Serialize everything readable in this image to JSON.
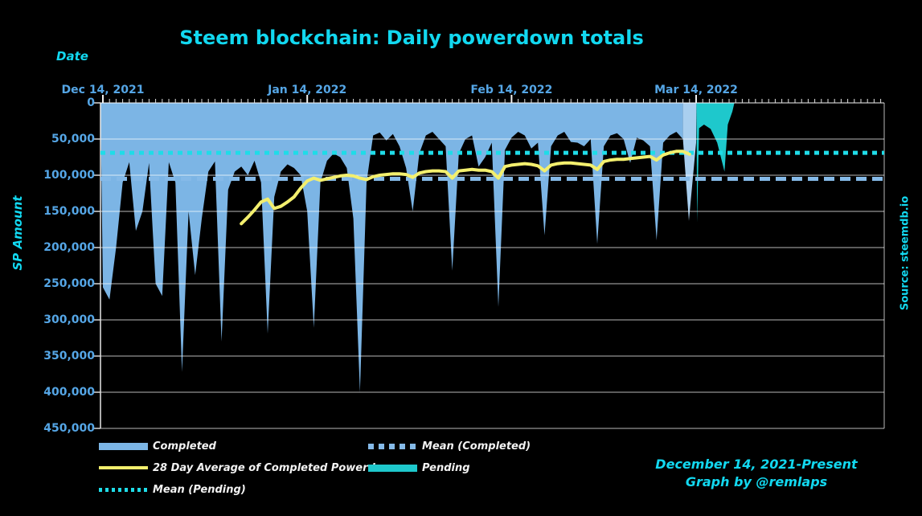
{
  "title": "Steem blockchain: Daily powerdown totals",
  "x_axis_title": "Date",
  "y_axis_title": "SP Amount",
  "source_note": "Source: steemdb.io",
  "footer": {
    "line1": "December 14, 2021-Present",
    "line2": "Graph by @remlaps"
  },
  "colors": {
    "background": "#000000",
    "title_cyan": "#12d8f0",
    "axis_label_blue": "#55a6e6",
    "completed_area": "#7cb5e5",
    "completed_area_light": "#a9cfef",
    "pending_area": "#1ec8cc",
    "avg_line_yellow": "#f3ef6e",
    "mean_completed_dash": "#85bae8",
    "mean_pending_dash": "#1fdce8",
    "gridline": "#b8b8b8",
    "legend_text": "#f2f2f2"
  },
  "legend": [
    {
      "label": "Completed",
      "swatch": "bar",
      "color": "#7cb5e5",
      "col": 1,
      "row": 1
    },
    {
      "label": "Mean (Completed)",
      "swatch": "dash",
      "color": "#85bae8",
      "col": 2,
      "row": 1
    },
    {
      "label": "28 Day Average of Completed Powerdowns",
      "swatch": "line",
      "color": "#f3ef6e",
      "col": 1,
      "row": 2
    },
    {
      "label": "Pending",
      "swatch": "bar",
      "color": "#1ec8cc",
      "col": 2,
      "row": 2
    },
    {
      "label": "Mean (Pending)",
      "swatch": "dot",
      "color": "#1fdce8",
      "col": 1,
      "row": 3
    }
  ],
  "chart_data": {
    "type": "area",
    "title": "Steem blockchain: Daily powerdown totals",
    "xlabel": "Date",
    "ylabel": "SP Amount",
    "x_unit": "days since Dec 14, 2021",
    "ylim": [
      0,
      450000
    ],
    "y_inverted": true,
    "grid": "horizontal",
    "legend_position": "bottom",
    "axes": {
      "x_ticks": [
        {
          "day": 0,
          "label": "Dec 14, 2021"
        },
        {
          "day": 31,
          "label": "Jan 14, 2022"
        },
        {
          "day": 62,
          "label": "Feb 14, 2022"
        },
        {
          "day": 90,
          "label": "Mar 14, 2022"
        }
      ],
      "x_minor_tick_every_days": 1,
      "x_max_day": 118,
      "y_ticks": [
        {
          "value": 0,
          "label": "0"
        },
        {
          "value": 50000,
          "label": "50,000"
        },
        {
          "value": 100000,
          "label": "100,000"
        },
        {
          "value": 150000,
          "label": "150,000"
        },
        {
          "value": 200000,
          "label": "200,000"
        },
        {
          "value": 250000,
          "label": "250,000"
        },
        {
          "value": 300000,
          "label": "300,000"
        },
        {
          "value": 350000,
          "label": "350,000"
        },
        {
          "value": 400000,
          "label": "400,000"
        },
        {
          "value": 450000,
          "label": "450,000"
        }
      ]
    },
    "series": [
      {
        "name": "Completed",
        "type": "area",
        "color": "#7cb5e5",
        "points": [
          [
            0,
            255000
          ],
          [
            1,
            272000
          ],
          [
            2,
            200000
          ],
          [
            3,
            110000
          ],
          [
            4,
            82000
          ],
          [
            5,
            177000
          ],
          [
            6,
            150000
          ],
          [
            7,
            83000
          ],
          [
            8,
            250000
          ],
          [
            9,
            267000
          ],
          [
            10,
            82000
          ],
          [
            11,
            110000
          ],
          [
            12,
            372000
          ],
          [
            13,
            150000
          ],
          [
            14,
            238000
          ],
          [
            15,
            160000
          ],
          [
            16,
            95000
          ],
          [
            17,
            81000
          ],
          [
            18,
            330000
          ],
          [
            19,
            120000
          ],
          [
            20,
            95000
          ],
          [
            21,
            88000
          ],
          [
            22,
            100000
          ],
          [
            23,
            80000
          ],
          [
            24,
            110000
          ],
          [
            25,
            319000
          ],
          [
            26,
            130000
          ],
          [
            27,
            95000
          ],
          [
            28,
            85000
          ],
          [
            29,
            90000
          ],
          [
            30,
            100000
          ],
          [
            31,
            150000
          ],
          [
            32,
            311000
          ],
          [
            33,
            110000
          ],
          [
            34,
            80000
          ],
          [
            35,
            70000
          ],
          [
            36,
            75000
          ],
          [
            37,
            90000
          ],
          [
            38,
            160000
          ],
          [
            39,
            400000
          ],
          [
            40,
            110000
          ],
          [
            41,
            45000
          ],
          [
            42,
            41000
          ],
          [
            43,
            52000
          ],
          [
            44,
            43000
          ],
          [
            45,
            60000
          ],
          [
            46,
            90000
          ],
          [
            47,
            150000
          ],
          [
            48,
            70000
          ],
          [
            49,
            45000
          ],
          [
            50,
            40000
          ],
          [
            51,
            50000
          ],
          [
            52,
            60000
          ],
          [
            53,
            232000
          ],
          [
            54,
            70000
          ],
          [
            55,
            50000
          ],
          [
            56,
            45000
          ],
          [
            57,
            88000
          ],
          [
            58,
            75000
          ],
          [
            59,
            55000
          ],
          [
            60,
            282000
          ],
          [
            61,
            65000
          ],
          [
            62,
            48000
          ],
          [
            63,
            40000
          ],
          [
            64,
            45000
          ],
          [
            65,
            63000
          ],
          [
            66,
            55000
          ],
          [
            67,
            183000
          ],
          [
            68,
            60000
          ],
          [
            69,
            45000
          ],
          [
            70,
            40000
          ],
          [
            71,
            54000
          ],
          [
            72,
            55000
          ],
          [
            73,
            60000
          ],
          [
            74,
            50000
          ],
          [
            75,
            195000
          ],
          [
            76,
            60000
          ],
          [
            77,
            45000
          ],
          [
            78,
            42000
          ],
          [
            79,
            50000
          ],
          [
            80,
            83000
          ],
          [
            81,
            48000
          ],
          [
            82,
            52000
          ],
          [
            83,
            60000
          ],
          [
            84,
            190000
          ],
          [
            85,
            55000
          ],
          [
            86,
            45000
          ],
          [
            87,
            40000
          ],
          [
            88,
            50000
          ]
        ]
      },
      {
        "name": "Completed (final days, lighter)",
        "type": "area",
        "color": "#a9cfef",
        "points": [
          [
            88,
            50000
          ],
          [
            88.9,
            163000
          ],
          [
            90,
            55000
          ],
          [
            90.05,
            0
          ]
        ]
      },
      {
        "name": "Pending",
        "type": "area",
        "color": "#1ec8cc",
        "points": [
          [
            90.05,
            0
          ],
          [
            90.15,
            165000
          ],
          [
            90.45,
            35000
          ],
          [
            91.2,
            30000
          ],
          [
            92.2,
            36000
          ],
          [
            93.2,
            55000
          ],
          [
            94.3,
            95000
          ],
          [
            94.8,
            30000
          ],
          [
            95.5,
            12000
          ],
          [
            95.8,
            0
          ]
        ]
      },
      {
        "name": "28 Day Average of Completed Powerdowns",
        "type": "line",
        "color": "#f3ef6e",
        "width": 4,
        "points": [
          [
            21,
            167000
          ],
          [
            22,
            158000
          ],
          [
            23,
            148000
          ],
          [
            24,
            137000
          ],
          [
            25,
            133000
          ],
          [
            26,
            146000
          ],
          [
            27,
            143000
          ],
          [
            28,
            137000
          ],
          [
            29,
            130000
          ],
          [
            30,
            118000
          ],
          [
            31,
            108000
          ],
          [
            32,
            104000
          ],
          [
            33,
            107000
          ],
          [
            34,
            105000
          ],
          [
            35,
            103000
          ],
          [
            36,
            101000
          ],
          [
            37,
            100000
          ],
          [
            38,
            101000
          ],
          [
            39,
            104000
          ],
          [
            40,
            106000
          ],
          [
            41,
            102000
          ],
          [
            42,
            100000
          ],
          [
            43,
            99000
          ],
          [
            44,
            98000
          ],
          [
            45,
            98000
          ],
          [
            46,
            99000
          ],
          [
            47,
            103000
          ],
          [
            48,
            97000
          ],
          [
            49,
            95000
          ],
          [
            50,
            94000
          ],
          [
            51,
            94000
          ],
          [
            52,
            95000
          ],
          [
            53,
            104000
          ],
          [
            54,
            94000
          ],
          [
            55,
            93000
          ],
          [
            56,
            92000
          ],
          [
            57,
            93000
          ],
          [
            58,
            93000
          ],
          [
            59,
            95000
          ],
          [
            60,
            104000
          ],
          [
            61,
            88000
          ],
          [
            62,
            86000
          ],
          [
            63,
            85000
          ],
          [
            64,
            84000
          ],
          [
            65,
            85000
          ],
          [
            66,
            87000
          ],
          [
            67,
            94000
          ],
          [
            68,
            86000
          ],
          [
            69,
            84000
          ],
          [
            70,
            83000
          ],
          [
            71,
            83000
          ],
          [
            72,
            84000
          ],
          [
            73,
            85000
          ],
          [
            74,
            86000
          ],
          [
            75,
            92000
          ],
          [
            76,
            81000
          ],
          [
            77,
            79000
          ],
          [
            78,
            78000
          ],
          [
            79,
            78000
          ],
          [
            80,
            77000
          ],
          [
            81,
            76000
          ],
          [
            82,
            75000
          ],
          [
            83,
            74000
          ],
          [
            84,
            79000
          ],
          [
            85,
            72000
          ],
          [
            86,
            69000
          ],
          [
            87,
            67000
          ],
          [
            88,
            67000
          ],
          [
            89,
            71000
          ]
        ]
      },
      {
        "name": "Mean (Completed)",
        "type": "hline",
        "color": "#85bae8",
        "value": 105000,
        "dash": "13 7",
        "width": 5
      },
      {
        "name": "Mean (Pending)",
        "type": "hline",
        "color": "#1fdce8",
        "value": 69000,
        "dash": "6 6",
        "width": 5
      }
    ]
  }
}
